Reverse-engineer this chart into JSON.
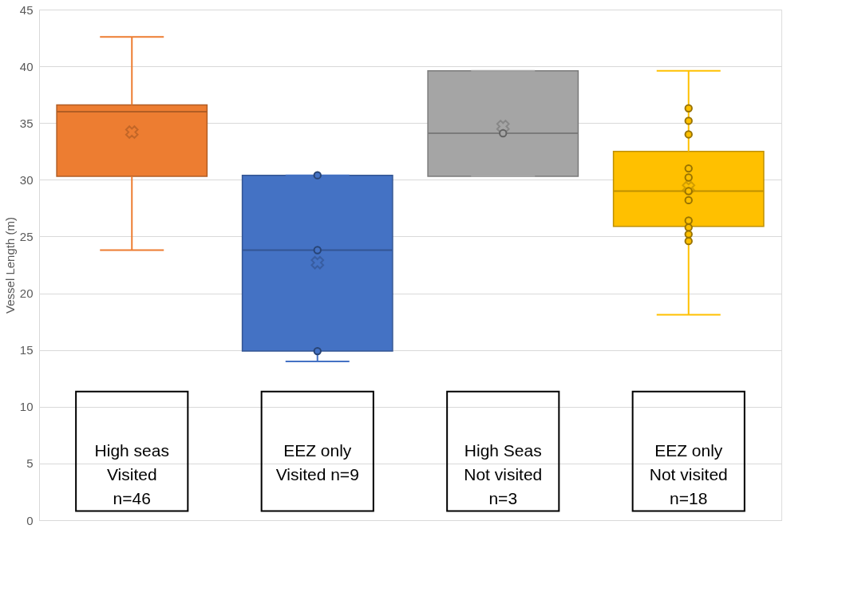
{
  "chart_data": {
    "type": "box",
    "ylabel": "Vessel Length (m)",
    "categories": [
      "High seas\nVisited\nn=46",
      "EEZ only\nVisited n=9",
      "High Seas\nNot visited\nn=3",
      "EEZ only\nNot visited\nn=18"
    ],
    "colors": [
      "#ed7d31",
      "#4472c4",
      "#a5a5a5",
      "#ffc000"
    ],
    "boxes": [
      {
        "low": 23.8,
        "q1": 30.3,
        "median": 36.0,
        "q3": 36.6,
        "high": 42.6,
        "mean": 34.2
      },
      {
        "low": 14.0,
        "q1": 14.9,
        "median": 23.8,
        "q3": 30.4,
        "high": 30.4,
        "mean": 22.7
      },
      {
        "low": 30.3,
        "q1": 30.3,
        "median": 34.1,
        "q3": 39.6,
        "high": 39.6,
        "mean": 34.7
      },
      {
        "low": 18.1,
        "q1": 25.9,
        "median": 29.0,
        "q3": 32.5,
        "high": 39.6,
        "mean": 29.3
      }
    ],
    "series": [
      {
        "type": "scatter",
        "color": "#4472c4",
        "x": [
          "EEZ only\nVisited n=9",
          "EEZ only\nVisited n=9",
          "EEZ only\nVisited n=9"
        ],
        "values": [
          30.4,
          23.8,
          14.9
        ]
      },
      {
        "type": "scatter",
        "color": "#a5a5a5",
        "x": [
          "High Seas\nNot visited\nn=3"
        ],
        "values": [
          34.1
        ]
      },
      {
        "type": "scatter",
        "color": "#ffc000",
        "x": [
          "EEZ only\nNot visited\nn=18",
          "EEZ only\nNot visited\nn=18",
          "EEZ only\nNot visited\nn=18",
          "EEZ only\nNot visited\nn=18",
          "EEZ only\nNot visited\nn=18",
          "EEZ only\nNot visited\nn=18",
          "EEZ only\nNot visited\nn=18",
          "EEZ only\nNot visited\nn=18",
          "EEZ only\nNot visited\nn=18",
          "EEZ only\nNot visited\nn=18",
          "EEZ only\nNot visited\nn=18"
        ],
        "values": [
          36.3,
          35.2,
          34.0,
          31.0,
          30.2,
          29.0,
          28.2,
          26.4,
          25.8,
          25.2,
          24.6
        ]
      }
    ],
    "ylim": [
      0,
      45
    ],
    "yticks": [
      0,
      5,
      10,
      15,
      20,
      25,
      30,
      35,
      40,
      45
    ],
    "grid": "y"
  }
}
